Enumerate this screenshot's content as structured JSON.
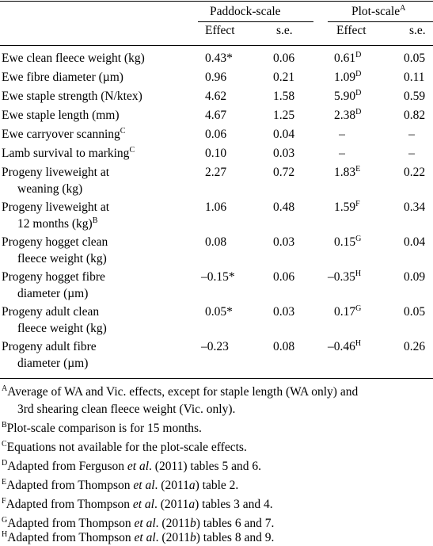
{
  "header": {
    "group_paddock": "Paddock-scale",
    "group_plot": "Plot-scale",
    "group_plot_sup": "A",
    "col_effect_1": "Effect",
    "col_se_1": "s.e.",
    "col_effect_2": "Effect",
    "col_se_2": "s.e."
  },
  "rows": [
    {
      "label1": "Ewe clean fleece weight (kg)",
      "label1_sup": "",
      "label2": "",
      "label2_sup": "",
      "pe": "0.43*",
      "pse": "0.06",
      "plt": "0.61",
      "plt_sup": "D",
      "plse": "0.05"
    },
    {
      "label1": "Ewe fibre diameter (µm)",
      "label1_sup": "",
      "label2": "",
      "label2_sup": "",
      "pe": "0.96",
      "pse": "0.21",
      "plt": "1.09",
      "plt_sup": "D",
      "plse": "0.11"
    },
    {
      "label1": "Ewe staple strength (N/ktex)",
      "label1_sup": "",
      "label2": "",
      "label2_sup": "",
      "pe": "4.62",
      "pse": "1.58",
      "plt": "5.90",
      "plt_sup": "D",
      "plse": "0.59"
    },
    {
      "label1": "Ewe staple length (mm)",
      "label1_sup": "",
      "label2": "",
      "label2_sup": "",
      "pe": "4.67",
      "pse": "1.25",
      "plt": "2.38",
      "plt_sup": "D",
      "plse": "0.82"
    },
    {
      "label1": "Ewe carryover scanning",
      "label1_sup": "C",
      "label2": "",
      "label2_sup": "",
      "pe": "0.06",
      "pse": "0.04",
      "plt": "–",
      "plt_sup": "",
      "plse": "–"
    },
    {
      "label1": "Lamb survival to marking",
      "label1_sup": "C",
      "label2": "",
      "label2_sup": "",
      "pe": "0.10",
      "pse": "0.03",
      "plt": "–",
      "plt_sup": "",
      "plse": "–"
    },
    {
      "label1": "Progeny liveweight at",
      "label1_sup": "",
      "label2": "weaning (kg)",
      "label2_sup": "",
      "pe": "2.27",
      "pse": "0.72",
      "plt": "1.83",
      "plt_sup": "E",
      "plse": "0.22"
    },
    {
      "label1": "Progeny liveweight at",
      "label1_sup": "",
      "label2": "12 months (kg)",
      "label2_sup": "B",
      "pe": "1.06",
      "pse": "0.48",
      "plt": "1.59",
      "plt_sup": "F",
      "plse": "0.34"
    },
    {
      "label1": "Progeny hogget clean",
      "label1_sup": "",
      "label2": "fleece weight (kg)",
      "label2_sup": "",
      "pe": "0.08",
      "pse": "0.03",
      "plt": "0.15",
      "plt_sup": "G",
      "plse": "0.04"
    },
    {
      "label1": "Progeny hogget fibre",
      "label1_sup": "",
      "label2": "diameter (µm)",
      "label2_sup": "",
      "pe": "–0.15*",
      "pse": "0.06",
      "plt": "–0.35",
      "plt_sup": "H",
      "plse": "0.09"
    },
    {
      "label1": "Progeny adult clean",
      "label1_sup": "",
      "label2": "fleece weight (kg)",
      "label2_sup": "",
      "pe": "0.05*",
      "pse": "0.03",
      "plt": "0.17",
      "plt_sup": "G",
      "plse": "0.05"
    },
    {
      "label1": "Progeny adult fibre",
      "label1_sup": "",
      "label2": "diameter (µm)",
      "label2_sup": "",
      "pe": "–0.23",
      "pse": "0.08",
      "plt": "–0.46",
      "plt_sup": "H",
      "plse": "0.26"
    }
  ],
  "footnotes": {
    "A_mark": "A",
    "A_line1": "Average of WA and Vic. effects, except for staple length (WA only) and",
    "A_line2": "3rd shearing clean fleece weight (Vic. only).",
    "B_mark": "B",
    "B_text": "Plot-scale comparison is for 15 months.",
    "C_mark": "C",
    "C_text": "Equations not available for the plot-scale effects.",
    "D_mark": "D",
    "D_pre": "Adapted from Ferguson ",
    "D_etal": "et al",
    "D_post": ". (2011) tables 5 and 6.",
    "E_mark": "E",
    "E_pre": "Adapted from Thompson ",
    "E_etal": "et al",
    "E_mid": ". (2011",
    "E_ref": "a",
    "E_post": ") table 2.",
    "F_mark": "F",
    "F_pre": "Adapted from Thompson ",
    "F_etal": "et al",
    "F_mid": ". (2011",
    "F_ref": "a",
    "F_post": ") tables 3 and 4.",
    "G_mark": "G",
    "G_pre": "Adapted from Thompson ",
    "G_etal": "et al",
    "G_mid": ". (2011",
    "G_ref": "b",
    "G_post": ") tables 6 and 7.",
    "H_mark": "H",
    "H_pre": "Adapted from Thompson ",
    "H_etal": "et al",
    "H_mid": ". (2011",
    "H_ref": "b",
    "H_post": ") tables 8 and 9."
  }
}
